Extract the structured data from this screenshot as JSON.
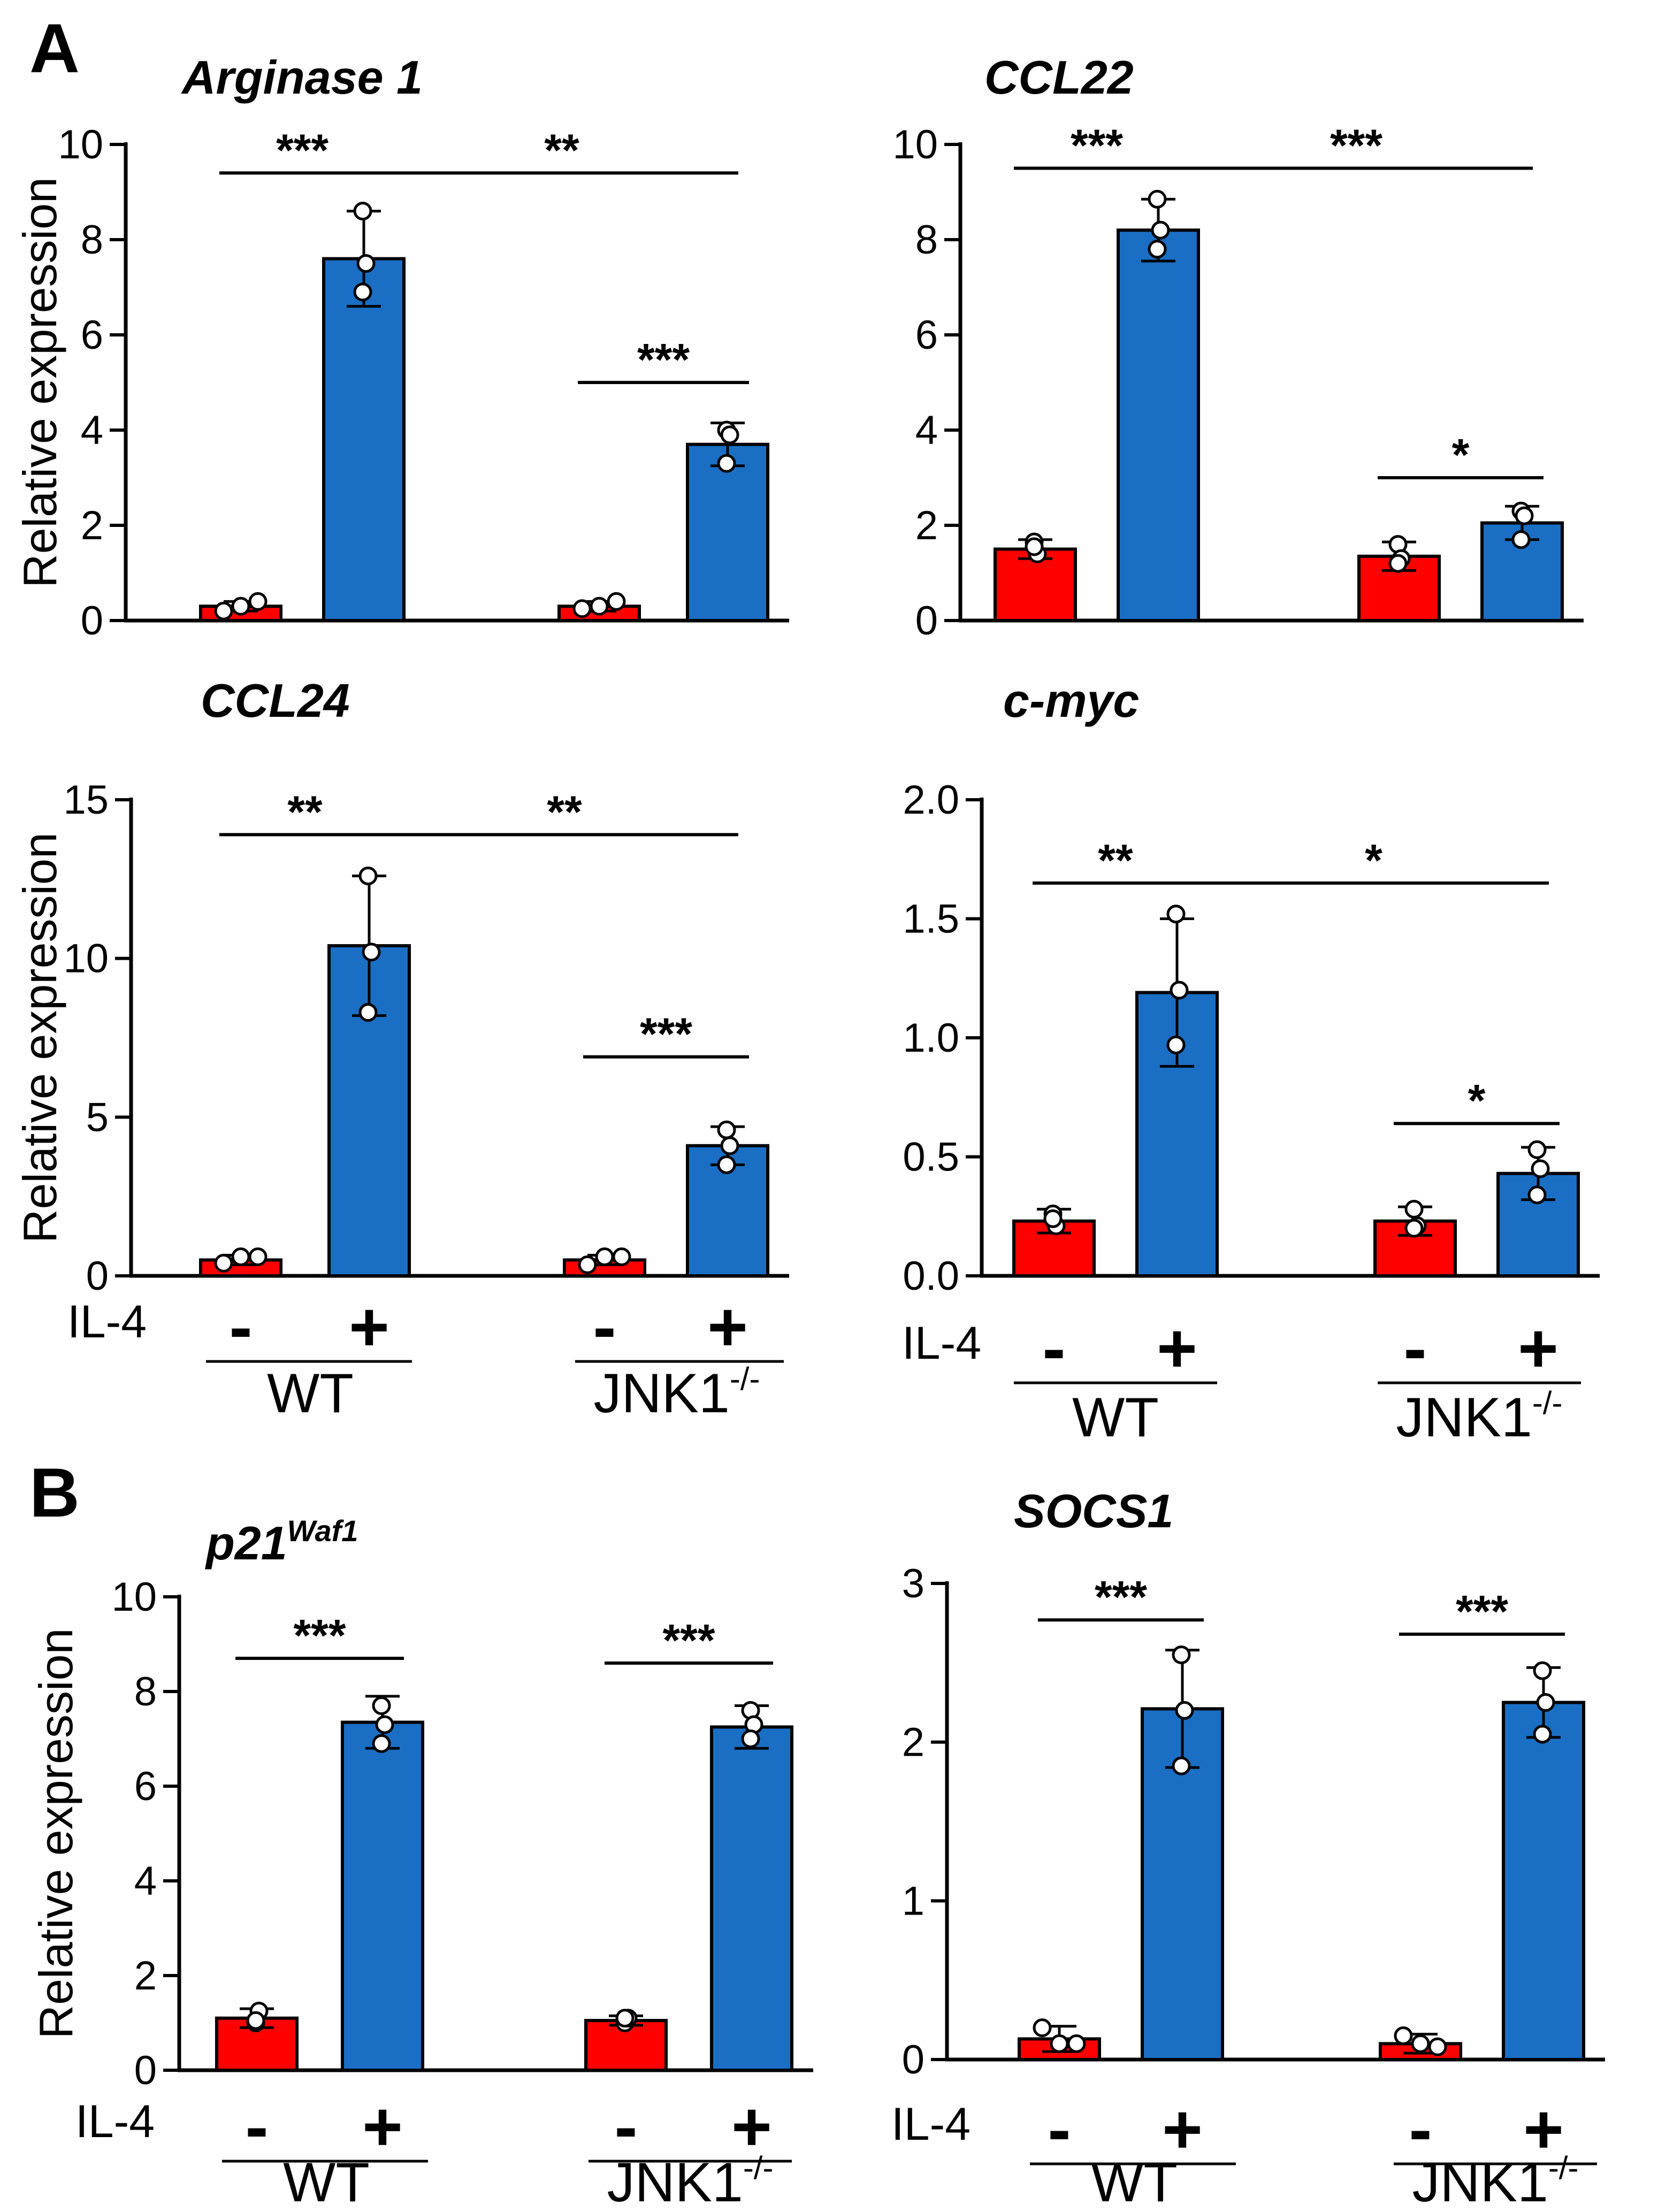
{
  "panel_labels": [
    "A",
    "B"
  ],
  "conditions": {
    "treatment_label": "IL-4",
    "minus": "-",
    "plus": "+",
    "groups": [
      {
        "name": "WT",
        "sup": ""
      },
      {
        "name": "JNK1",
        "sup": "-/-"
      }
    ]
  },
  "colors": {
    "minus_bar": "#ff0000",
    "plus_bar": "#1a6fc4",
    "outline": "#000000"
  },
  "chart_data": [
    {
      "type": "bar",
      "title": "Arginase 1",
      "title_sup": "",
      "ylabel": "Relative expression",
      "ylim": [
        0,
        10
      ],
      "yticks": [
        0,
        2,
        4,
        6,
        8,
        10
      ],
      "ytick_labels": [
        "0",
        "2",
        "4",
        "6",
        "8",
        "10"
      ],
      "categories": [
        "WT -",
        "WT +",
        "JNK1-/- -",
        "JNK1-/- +"
      ],
      "values": [
        0.3,
        7.6,
        0.3,
        3.7
      ],
      "errors": [
        0.1,
        1.0,
        0.1,
        0.45
      ],
      "points": [
        [
          0.2,
          0.3,
          0.4
        ],
        [
          8.6,
          7.5,
          6.9
        ],
        [
          0.25,
          0.3,
          0.4
        ],
        [
          4.0,
          3.9,
          3.3
        ]
      ],
      "significance": [
        {
          "from": 0,
          "to": 1,
          "label": "***",
          "y": 9.4
        },
        {
          "from": 1,
          "to": 3,
          "label": "**",
          "y": 9.4
        },
        {
          "from": 2,
          "to": 3,
          "label": "***",
          "y": 5.0
        }
      ]
    },
    {
      "type": "bar",
      "title": "CCL22",
      "title_sup": "",
      "ylabel": "",
      "ylim": [
        0,
        10
      ],
      "yticks": [
        0,
        2,
        4,
        6,
        8,
        10
      ],
      "ytick_labels": [
        "0",
        "2",
        "4",
        "6",
        "8",
        "10"
      ],
      "categories": [
        "WT -",
        "WT +",
        "JNK1-/- -",
        "JNK1-/- +"
      ],
      "values": [
        1.5,
        8.2,
        1.35,
        2.05
      ],
      "errors": [
        0.2,
        0.65,
        0.3,
        0.35
      ],
      "points": [
        [
          1.65,
          1.4,
          1.55
        ],
        [
          8.85,
          8.2,
          7.8
        ],
        [
          1.6,
          1.3,
          1.2
        ],
        [
          2.3,
          2.2,
          1.7
        ]
      ],
      "significance": [
        {
          "from": 0,
          "to": 1,
          "label": "***",
          "y": 9.5
        },
        {
          "from": 1,
          "to": 3,
          "label": "***",
          "y": 9.5
        },
        {
          "from": 2,
          "to": 3,
          "label": "*",
          "y": 3.0
        }
      ]
    },
    {
      "type": "bar",
      "title": "CCL24",
      "title_sup": "",
      "ylabel": "Relative expression",
      "ylim": [
        0,
        15
      ],
      "yticks": [
        0,
        5,
        10,
        15
      ],
      "ytick_labels": [
        "0",
        "5",
        "10",
        "15"
      ],
      "categories": [
        "WT -",
        "WT +",
        "JNK1-/- -",
        "JNK1-/- +"
      ],
      "values": [
        0.5,
        10.4,
        0.5,
        4.1
      ],
      "errors": [
        0.15,
        2.2,
        0.15,
        0.6
      ],
      "points": [
        [
          0.4,
          0.6,
          0.6
        ],
        [
          12.6,
          10.2,
          8.3
        ],
        [
          0.35,
          0.6,
          0.6
        ],
        [
          4.6,
          4.1,
          3.5
        ]
      ],
      "significance": [
        {
          "from": 0,
          "to": 1,
          "label": "**",
          "y": 13.9
        },
        {
          "from": 1,
          "to": 3,
          "label": "**",
          "y": 13.9
        },
        {
          "from": 2,
          "to": 3,
          "label": "***",
          "y": 6.9
        }
      ]
    },
    {
      "type": "bar",
      "title": "c-myc",
      "title_sup": "",
      "ylabel": "",
      "ylim": [
        0,
        2.0
      ],
      "yticks": [
        0,
        0.5,
        1.0,
        1.5,
        2.0
      ],
      "ytick_labels": [
        "0.0",
        "0.5",
        "1.0",
        "1.5",
        "2.0"
      ],
      "categories": [
        "WT -",
        "WT +",
        "JNK1-/- -",
        "JNK1-/- +"
      ],
      "values": [
        0.23,
        1.19,
        0.23,
        0.43
      ],
      "errors": [
        0.05,
        0.31,
        0.06,
        0.11
      ],
      "points": [
        [
          0.26,
          0.21,
          0.24
        ],
        [
          1.52,
          1.2,
          0.97
        ],
        [
          0.28,
          0.21,
          0.2
        ],
        [
          0.53,
          0.45,
          0.34
        ]
      ],
      "significance": [
        {
          "from": 0,
          "to": 1,
          "label": "**",
          "y": 1.65
        },
        {
          "from": 1,
          "to": 3,
          "label": "*",
          "y": 1.65
        },
        {
          "from": 2,
          "to": 3,
          "label": "*",
          "y": 0.64
        }
      ]
    },
    {
      "type": "bar",
      "title": "p21",
      "title_sup": "Waf1",
      "ylabel": "Relative expression",
      "ylim": [
        0,
        10
      ],
      "yticks": [
        0,
        2,
        4,
        6,
        8,
        10
      ],
      "ytick_labels": [
        "0",
        "2",
        "4",
        "6",
        "8",
        "10"
      ],
      "categories": [
        "WT -",
        "WT +",
        "JNK1-/- -",
        "JNK1-/- +"
      ],
      "values": [
        1.1,
        7.35,
        1.05,
        7.25
      ],
      "errors": [
        0.2,
        0.55,
        0.1,
        0.45
      ],
      "points": [
        [
          1.0,
          1.25,
          1.05
        ],
        [
          7.7,
          7.3,
          6.9
        ],
        [
          1.0,
          1.1,
          1.1
        ],
        [
          7.6,
          7.3,
          7.0
        ]
      ],
      "significance": [
        {
          "from": 0,
          "to": 1,
          "label": "***",
          "y": 8.7
        },
        {
          "from": 2,
          "to": 3,
          "label": "***",
          "y": 8.6
        }
      ]
    },
    {
      "type": "bar",
      "title": "SOCS1",
      "title_sup": "",
      "ylabel": "",
      "ylim": [
        0,
        3
      ],
      "yticks": [
        0,
        1,
        2,
        3
      ],
      "ytick_labels": [
        "0",
        "1",
        "2",
        "3"
      ],
      "categories": [
        "WT -",
        "WT +",
        "JNK1-/- -",
        "JNK1-/- +"
      ],
      "values": [
        0.13,
        2.21,
        0.1,
        2.25
      ],
      "errors": [
        0.08,
        0.37,
        0.06,
        0.22
      ],
      "points": [
        [
          0.2,
          0.1,
          0.1
        ],
        [
          2.55,
          2.2,
          1.85
        ],
        [
          0.15,
          0.1,
          0.08
        ],
        [
          2.45,
          2.25,
          2.05
        ]
      ],
      "significance": [
        {
          "from": 0,
          "to": 1,
          "label": "***",
          "y": 2.77
        },
        {
          "from": 2,
          "to": 3,
          "label": "***",
          "y": 2.68
        }
      ]
    }
  ]
}
